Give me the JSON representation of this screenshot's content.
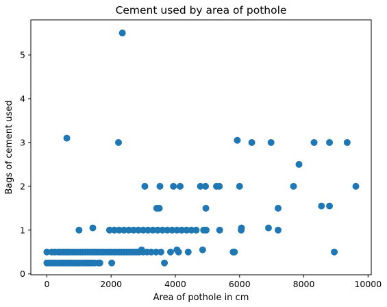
{
  "chart_data": {
    "type": "scatter",
    "title": "Cement used by area of pothole",
    "xlabel": "Area of pothole in cm",
    "ylabel": "Bags of cement used",
    "xlim": [
      -500,
      10100
    ],
    "ylim": [
      -0.02,
      5.8
    ],
    "xticks": [
      0,
      2000,
      4000,
      6000,
      8000,
      10000
    ],
    "yticks": [
      0,
      1,
      2,
      3,
      4,
      5
    ],
    "grid": false,
    "color": "#1f77b4",
    "points": [
      [
        0,
        0.25
      ],
      [
        80,
        0.25
      ],
      [
        160,
        0.25
      ],
      [
        240,
        0.25
      ],
      [
        320,
        0.25
      ],
      [
        400,
        0.25
      ],
      [
        460,
        0.25
      ],
      [
        520,
        0.25
      ],
      [
        580,
        0.25
      ],
      [
        640,
        0.25
      ],
      [
        700,
        0.25
      ],
      [
        760,
        0.25
      ],
      [
        820,
        0.25
      ],
      [
        880,
        0.25
      ],
      [
        940,
        0.25
      ],
      [
        1000,
        0.25
      ],
      [
        1080,
        0.25
      ],
      [
        1160,
        0.25
      ],
      [
        1240,
        0.25
      ],
      [
        1320,
        0.25
      ],
      [
        1400,
        0.25
      ],
      [
        1480,
        0.25
      ],
      [
        1600,
        0.25
      ],
      [
        1650,
        0.25
      ],
      [
        2020,
        0.25
      ],
      [
        3660,
        0.25
      ],
      [
        0,
        0.5
      ],
      [
        150,
        0.5
      ],
      [
        250,
        0.5
      ],
      [
        350,
        0.5
      ],
      [
        420,
        0.5
      ],
      [
        500,
        0.5
      ],
      [
        580,
        0.5
      ],
      [
        650,
        0.5
      ],
      [
        720,
        0.5
      ],
      [
        800,
        0.5
      ],
      [
        880,
        0.5
      ],
      [
        960,
        0.5
      ],
      [
        1040,
        0.5
      ],
      [
        1120,
        0.5
      ],
      [
        1200,
        0.5
      ],
      [
        1280,
        0.5
      ],
      [
        1360,
        0.5
      ],
      [
        1440,
        0.5
      ],
      [
        1520,
        0.5
      ],
      [
        1600,
        0.5
      ],
      [
        1680,
        0.5
      ],
      [
        1760,
        0.5
      ],
      [
        1840,
        0.5
      ],
      [
        1920,
        0.5
      ],
      [
        2000,
        0.5
      ],
      [
        2080,
        0.5
      ],
      [
        2160,
        0.5
      ],
      [
        2240,
        0.5
      ],
      [
        2320,
        0.5
      ],
      [
        2400,
        0.5
      ],
      [
        2480,
        0.5
      ],
      [
        2560,
        0.5
      ],
      [
        2640,
        0.5
      ],
      [
        2720,
        0.5
      ],
      [
        2800,
        0.5
      ],
      [
        2880,
        0.5
      ],
      [
        3000,
        0.5
      ],
      [
        3120,
        0.5
      ],
      [
        3250,
        0.5
      ],
      [
        3400,
        0.5
      ],
      [
        3550,
        0.5
      ],
      [
        3850,
        0.5
      ],
      [
        4100,
        0.5
      ],
      [
        4400,
        0.5
      ],
      [
        5800,
        0.5
      ],
      [
        5840,
        0.5
      ],
      [
        8950,
        0.5
      ],
      [
        2950,
        0.55
      ],
      [
        4050,
        0.55
      ],
      [
        4850,
        0.55
      ],
      [
        1000,
        1.0
      ],
      [
        1950,
        1.0
      ],
      [
        2100,
        1.0
      ],
      [
        2250,
        1.0
      ],
      [
        2400,
        1.0
      ],
      [
        2550,
        1.0
      ],
      [
        2700,
        1.0
      ],
      [
        2850,
        1.0
      ],
      [
        3000,
        1.0
      ],
      [
        3150,
        1.0
      ],
      [
        3300,
        1.0
      ],
      [
        3450,
        1.0
      ],
      [
        3600,
        1.0
      ],
      [
        3750,
        1.0
      ],
      [
        3900,
        1.0
      ],
      [
        4050,
        1.0
      ],
      [
        4200,
        1.0
      ],
      [
        4350,
        1.0
      ],
      [
        4500,
        1.0
      ],
      [
        4650,
        1.0
      ],
      [
        4880,
        1.0
      ],
      [
        4960,
        1.0
      ],
      [
        5380,
        1.0
      ],
      [
        6050,
        1.0
      ],
      [
        7200,
        1.0
      ],
      [
        6060,
        1.05
      ],
      [
        6900,
        1.05
      ],
      [
        1430,
        1.05
      ],
      [
        3420,
        1.5
      ],
      [
        3500,
        1.5
      ],
      [
        4950,
        1.5
      ],
      [
        7200,
        1.5
      ],
      [
        8550,
        1.55
      ],
      [
        8800,
        1.55
      ],
      [
        3050,
        2.0
      ],
      [
        3520,
        2.0
      ],
      [
        3940,
        2.0
      ],
      [
        4150,
        2.0
      ],
      [
        4780,
        2.0
      ],
      [
        4940,
        2.0
      ],
      [
        5280,
        2.0
      ],
      [
        5370,
        2.0
      ],
      [
        6000,
        2.0
      ],
      [
        7680,
        2.0
      ],
      [
        9620,
        2.0
      ],
      [
        7850,
        2.5
      ],
      [
        620,
        3.1
      ],
      [
        2230,
        3.0
      ],
      [
        5930,
        3.05
      ],
      [
        6380,
        3.0
      ],
      [
        6980,
        3.0
      ],
      [
        8320,
        3.0
      ],
      [
        8800,
        3.0
      ],
      [
        9350,
        3.0
      ],
      [
        2350,
        5.5
      ]
    ]
  }
}
